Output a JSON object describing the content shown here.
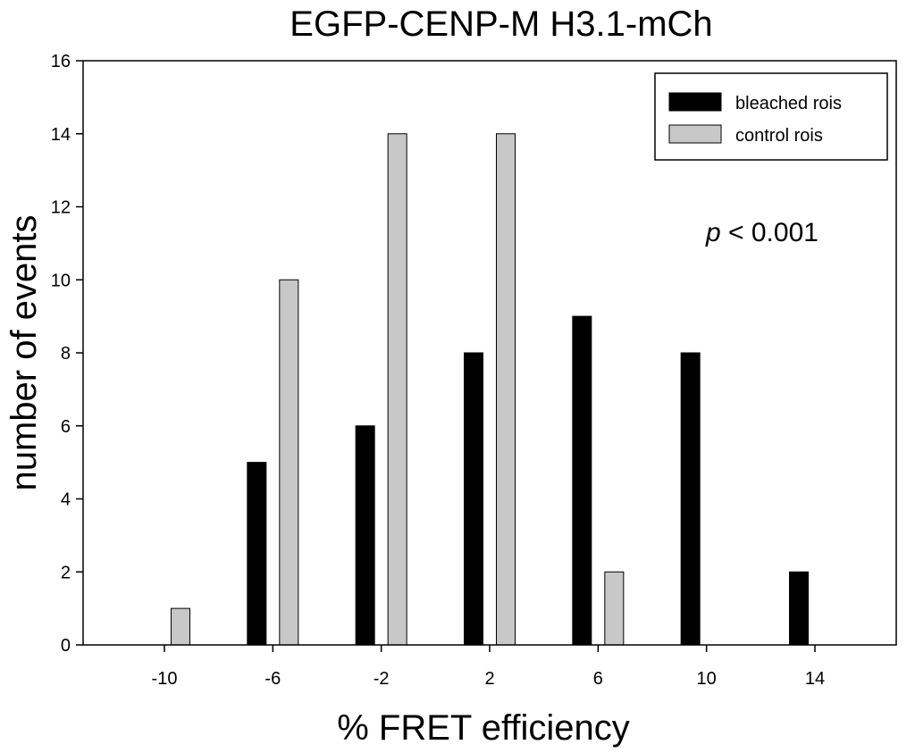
{
  "chart_data": {
    "type": "bar",
    "title": "EGFP-CENP-M  H3.1-mCh",
    "xlabel": "% FRET efficiency",
    "ylabel": "number of events",
    "categories": [
      "-10",
      "-6",
      "-2",
      "2",
      "6",
      "10",
      "14"
    ],
    "series": [
      {
        "name": "bleached rois",
        "color": "#000000",
        "values": [
          0,
          5,
          6,
          8,
          9,
          8,
          2
        ]
      },
      {
        "name": "control rois",
        "color": "#c8c8c8",
        "values": [
          1,
          10,
          14,
          14,
          2,
          0,
          0
        ]
      }
    ],
    "ylim": [
      0,
      16
    ],
    "yticks": [
      0,
      2,
      4,
      6,
      8,
      10,
      12,
      14,
      16
    ],
    "xlim": [
      -13,
      17
    ],
    "legend_position": "top-right",
    "annotation": {
      "italic": "p",
      "rest": " < 0.001"
    },
    "grid": false
  }
}
